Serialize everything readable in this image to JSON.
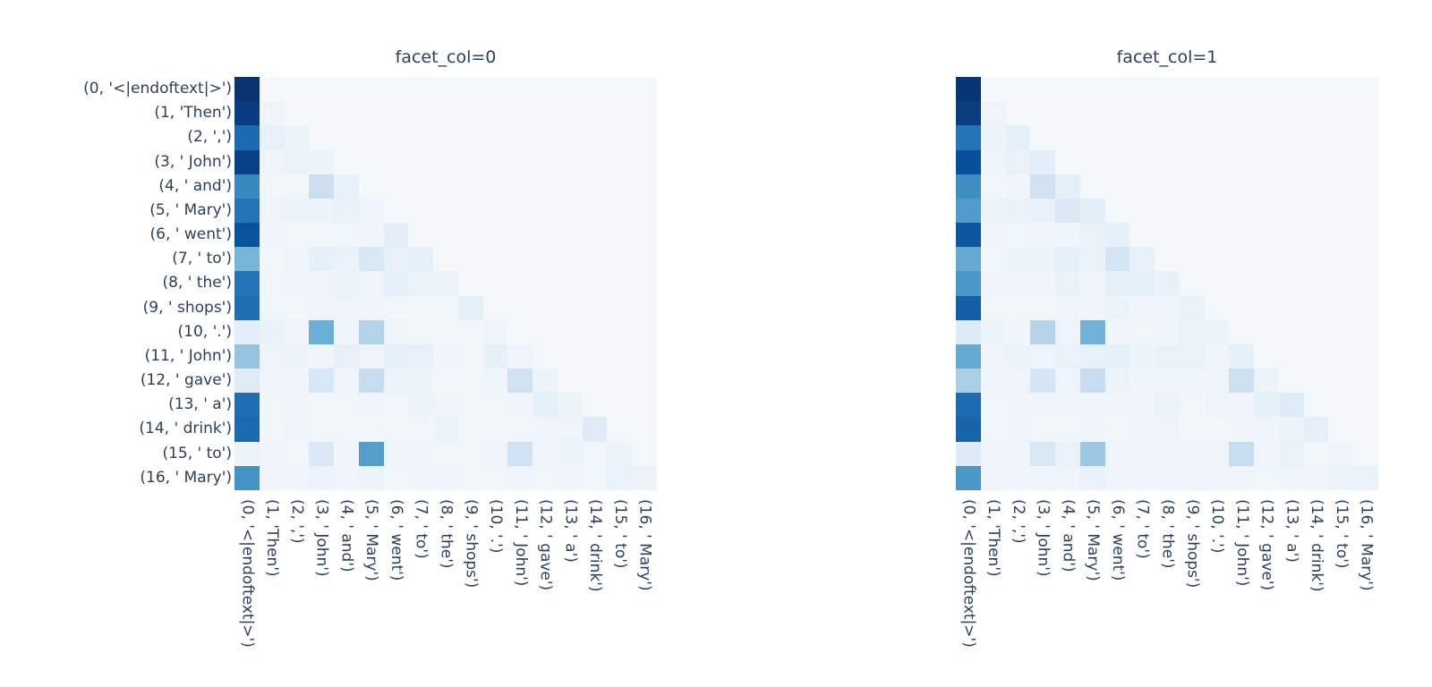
{
  "figure": {
    "kind": "faceted attention-pattern heatmap",
    "background_color": "#ffffff",
    "font_color": "#2a3f5f"
  },
  "chart_data": {
    "type": "heatmap",
    "facet_titles": [
      "facet_col=0",
      "facet_col=1"
    ],
    "x_ticklabels": [
      "(0, '<|endoftext|>')",
      "(1, 'Then')",
      "(2, ',')",
      "(3, ' John')",
      "(4, ' and')",
      "(5, ' Mary')",
      "(6, ' went')",
      "(7, ' to')",
      "(8, ' the')",
      "(9, ' shops')",
      "(10, '.')",
      "(11, ' John')",
      "(12, ' gave')",
      "(13, ' a')",
      "(14, ' drink')",
      "(15, ' to')",
      "(16, ' Mary')"
    ],
    "y_ticklabels": [
      "(0, '<|endoftext|>')",
      "(1, 'Then')",
      "(2, ',')",
      "(3, ' John')",
      "(4, ' and')",
      "(5, ' Mary')",
      "(6, ' went')",
      "(7, ' to')",
      "(8, ' the')",
      "(9, ' shops')",
      "(10, '.')",
      "(11, ' John')",
      "(12, ' gave')",
      "(13, ' a')",
      "(14, ' drink')",
      "(15, ' to')",
      "(16, ' Mary')"
    ],
    "x_tickangle": 90,
    "zmin": 0,
    "zmax": 1,
    "colorscale_name": "Blues",
    "colorscale": [
      [
        0.0,
        "#f5f8fb"
      ],
      [
        0.125,
        "#deebf7"
      ],
      [
        0.25,
        "#c6dbef"
      ],
      [
        0.375,
        "#9ecae1"
      ],
      [
        0.5,
        "#6baed6"
      ],
      [
        0.625,
        "#4292c6"
      ],
      [
        0.75,
        "#2171b5"
      ],
      [
        0.875,
        "#08519c"
      ],
      [
        1.0,
        "#08306b"
      ]
    ],
    "colorbar": "none",
    "grid_lines": false,
    "facets": [
      {
        "title": "facet_col=0",
        "values": [
          [
            0.99
          ],
          [
            0.95,
            0.04
          ],
          [
            0.78,
            0.07,
            0.05
          ],
          [
            0.93,
            0.04,
            0.06,
            0.05
          ],
          [
            0.66,
            0.02,
            0.02,
            0.22,
            0.07
          ],
          [
            0.74,
            0.04,
            0.05,
            0.05,
            0.06,
            0.04
          ],
          [
            0.87,
            0.03,
            0.02,
            0.02,
            0.02,
            0.03,
            0.1
          ],
          [
            0.47,
            0.02,
            0.04,
            0.08,
            0.06,
            0.15,
            0.07,
            0.09
          ],
          [
            0.74,
            0.02,
            0.03,
            0.04,
            0.05,
            0.04,
            0.08,
            0.06,
            0.06
          ],
          [
            0.76,
            0.02,
            0.02,
            0.03,
            0.04,
            0.03,
            0.02,
            0.02,
            0.02,
            0.09
          ],
          [
            0.1,
            0.06,
            0.04,
            0.5,
            0.03,
            0.31,
            0.04,
            0.02,
            0.02,
            0.02,
            0.04
          ],
          [
            0.4,
            0.04,
            0.05,
            0.03,
            0.07,
            0.04,
            0.09,
            0.07,
            0.03,
            0.02,
            0.08,
            0.04
          ],
          [
            0.12,
            0.03,
            0.03,
            0.16,
            0.04,
            0.24,
            0.05,
            0.05,
            0.02,
            0.02,
            0.03,
            0.2,
            0.05
          ],
          [
            0.76,
            0.02,
            0.03,
            0.02,
            0.02,
            0.03,
            0.02,
            0.05,
            0.04,
            0.02,
            0.02,
            0.03,
            0.08,
            0.05
          ],
          [
            0.78,
            0.02,
            0.04,
            0.02,
            0.02,
            0.02,
            0.02,
            0.02,
            0.05,
            0.02,
            0.02,
            0.02,
            0.03,
            0.04,
            0.12
          ],
          [
            0.05,
            0.03,
            0.02,
            0.14,
            0.03,
            0.57,
            0.03,
            0.04,
            0.02,
            0.02,
            0.03,
            0.2,
            0.03,
            0.05,
            0.02,
            0.05
          ],
          [
            0.62,
            0.04,
            0.03,
            0.05,
            0.03,
            0.05,
            0.02,
            0.03,
            0.03,
            0.02,
            0.02,
            0.04,
            0.02,
            0.03,
            0.02,
            0.06,
            0.05
          ]
        ]
      },
      {
        "title": "facet_col=1",
        "values": [
          [
            0.98
          ],
          [
            0.95,
            0.04
          ],
          [
            0.74,
            0.05,
            0.08
          ],
          [
            0.88,
            0.03,
            0.06,
            0.1
          ],
          [
            0.64,
            0.02,
            0.03,
            0.2,
            0.09
          ],
          [
            0.58,
            0.05,
            0.06,
            0.07,
            0.14,
            0.1
          ],
          [
            0.85,
            0.03,
            0.02,
            0.03,
            0.03,
            0.06,
            0.08
          ],
          [
            0.52,
            0.02,
            0.05,
            0.05,
            0.09,
            0.06,
            0.17,
            0.07
          ],
          [
            0.6,
            0.03,
            0.04,
            0.03,
            0.06,
            0.04,
            0.09,
            0.09,
            0.07
          ],
          [
            0.82,
            0.02,
            0.02,
            0.02,
            0.03,
            0.03,
            0.05,
            0.03,
            0.03,
            0.06
          ],
          [
            0.13,
            0.05,
            0.03,
            0.3,
            0.04,
            0.48,
            0.03,
            0.02,
            0.03,
            0.05,
            0.05
          ],
          [
            0.52,
            0.04,
            0.05,
            0.04,
            0.06,
            0.07,
            0.08,
            0.05,
            0.06,
            0.06,
            0.04,
            0.08
          ],
          [
            0.34,
            0.03,
            0.04,
            0.17,
            0.04,
            0.24,
            0.05,
            0.03,
            0.03,
            0.04,
            0.04,
            0.21,
            0.05
          ],
          [
            0.77,
            0.02,
            0.03,
            0.03,
            0.03,
            0.03,
            0.03,
            0.03,
            0.05,
            0.02,
            0.04,
            0.03,
            0.08,
            0.12
          ],
          [
            0.8,
            0.02,
            0.03,
            0.02,
            0.02,
            0.03,
            0.02,
            0.03,
            0.04,
            0.02,
            0.02,
            0.03,
            0.03,
            0.05,
            0.09
          ],
          [
            0.13,
            0.03,
            0.03,
            0.15,
            0.06,
            0.38,
            0.04,
            0.03,
            0.03,
            0.03,
            0.04,
            0.24,
            0.04,
            0.06,
            0.02,
            0.04
          ],
          [
            0.6,
            0.04,
            0.03,
            0.04,
            0.03,
            0.06,
            0.03,
            0.03,
            0.03,
            0.04,
            0.03,
            0.04,
            0.02,
            0.03,
            0.03,
            0.05,
            0.06
          ]
        ]
      }
    ]
  }
}
